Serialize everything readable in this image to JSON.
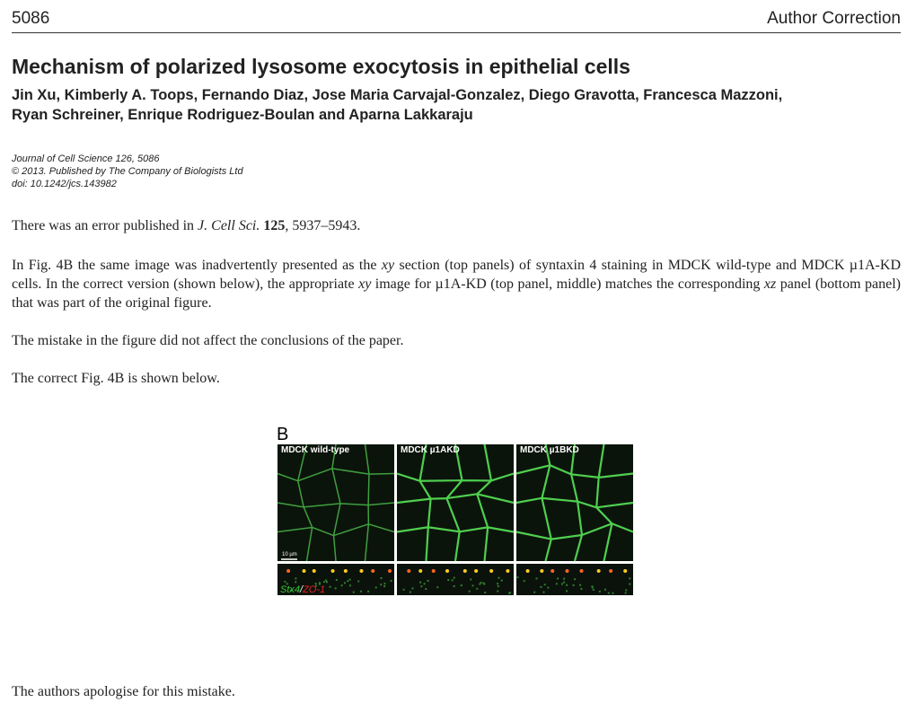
{
  "header": {
    "page_number": "5086",
    "section": "Author Correction"
  },
  "article": {
    "title": "Mechanism of polarized lysosome exocytosis in epithelial cells",
    "authors": [
      "Jin Xu, Kimberly A. Toops, Fernando Diaz, Jose Maria Carvajal-Gonzalez, Diego Gravotta, Francesca Mazzoni,",
      "Ryan Schreiner, Enrique Rodriguez-Boulan and Aparna Lakkaraju"
    ],
    "citation": [
      "Journal of Cell Science 126, 5086",
      "© 2013. Published by The Company of Biologists Ltd",
      "doi: 10.1242/jcs.143982"
    ]
  },
  "paragraphs": [
    [
      "There was an error published in ",
      "J. Cell Sci. ",
      "125",
      ", 5937–5943."
    ],
    [
      "In Fig. 4B the same image was inadvertently presented as the ",
      "xy",
      " section (top panels) of syntaxin 4 staining in MDCK wild-type and MDCK µ1A-KD cells. In the correct version (shown below), the appropriate ",
      "xy",
      " image for µ1A-KD (top panel, middle) matches the corresponding ",
      "xz",
      " panel (bottom panel) that was part of the original figure."
    ],
    [
      "The mistake in the figure did not affect the conclusions of the paper."
    ],
    [
      "The correct Fig. 4B is shown below."
    ]
  ],
  "figure": {
    "label": "B",
    "panels": [
      "MDCK wild-type",
      "MDCK µ1AKD",
      "MDCK µ1BKD"
    ],
    "scale_bar": "10 µm",
    "stain": [
      "Stx4",
      "/",
      "ZO-1"
    ]
  },
  "closing": "The authors apologise for this mistake."
}
